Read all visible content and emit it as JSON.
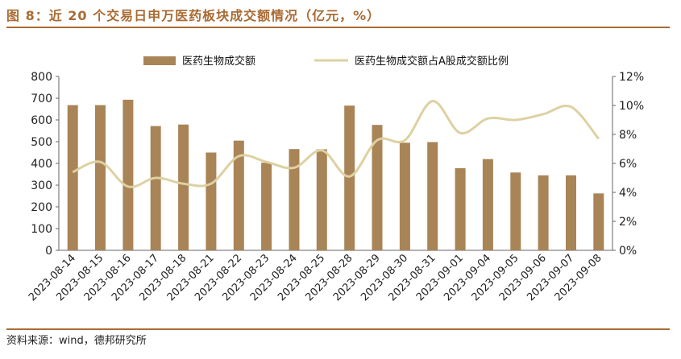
{
  "figure": {
    "title": "图 8：近 20 个交易日申万医药板块成交额情况（亿元，%）",
    "source": "资料来源：wind，德邦研究所"
  },
  "colors": {
    "bar": "#a98457",
    "line": "#ddd1a2",
    "accent": "#a96b33"
  },
  "chart_data": {
    "type": "bar",
    "categories": [
      "2023-08-14",
      "2023-08-15",
      "2023-08-16",
      "2023-08-17",
      "2023-08-18",
      "2023-08-21",
      "2023-08-22",
      "2023-08-23",
      "2023-08-24",
      "2023-08-25",
      "2023-08-28",
      "2023-08-29",
      "2023-08-30",
      "2023-08-31",
      "2023-09-01",
      "2023-09-04",
      "2023-09-05",
      "2023-09-06",
      "2023-09-07",
      "2023-09-08"
    ],
    "series": [
      {
        "name": "医药生物成交额",
        "type": "bar",
        "axis": "left",
        "values": [
          668,
          668,
          693,
          572,
          579,
          450,
          505,
          403,
          466,
          465,
          666,
          577,
          495,
          498,
          378,
          420,
          358,
          345,
          345,
          262
        ]
      },
      {
        "name": "医药生物成交额占A股成交额比例",
        "type": "line",
        "axis": "right",
        "values": [
          5.4,
          6.1,
          4.4,
          5.0,
          4.6,
          4.6,
          6.5,
          6.1,
          5.7,
          6.9,
          5.1,
          7.6,
          7.6,
          10.3,
          8.1,
          9.1,
          9.0,
          9.4,
          9.9,
          7.7
        ]
      }
    ],
    "left_axis": {
      "ylim": [
        0,
        800
      ],
      "ticks": [
        "0",
        "100",
        "200",
        "300",
        "400",
        "500",
        "600",
        "700",
        "800"
      ]
    },
    "right_axis": {
      "ylim": [
        0,
        12
      ],
      "ticks": [
        "0%",
        "2%",
        "4%",
        "6%",
        "8%",
        "10%",
        "12%"
      ]
    },
    "legend_position": "top-center",
    "grid": false
  }
}
